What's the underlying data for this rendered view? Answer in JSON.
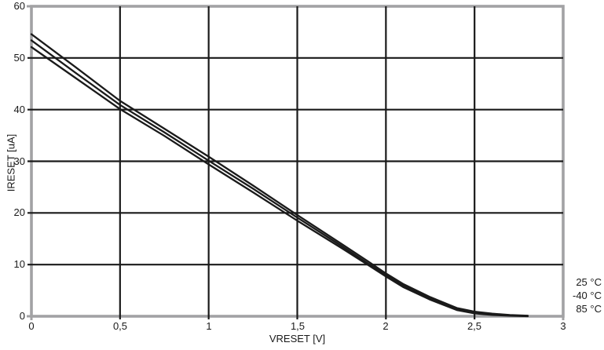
{
  "chart_data": {
    "type": "line",
    "xlabel": "VRESET [V]",
    "ylabel": "IRESET [uA]",
    "xlim": [
      0,
      3
    ],
    "ylim": [
      0,
      60
    ],
    "x_ticks": [
      0,
      0.5,
      1,
      1.5,
      2,
      2.5,
      3
    ],
    "x_tick_labels": [
      "0",
      "0,5",
      "1",
      "1,5",
      "2",
      "2,5",
      "3"
    ],
    "y_ticks": [
      0,
      10,
      20,
      30,
      40,
      50,
      60
    ],
    "y_tick_labels": [
      "0",
      "10",
      "20",
      "30",
      "40",
      "50",
      "60"
    ],
    "grid": true,
    "legend_position": "outside-right-bottom",
    "line_color": "#1a1a1a",
    "frame_color": "#a2a2a4",
    "text_color": "#1a1a1a",
    "background_color": "#ffffff",
    "x": [
      0,
      0.25,
      0.5,
      0.75,
      1.0,
      1.25,
      1.5,
      1.75,
      1.9,
      2.0,
      2.1,
      2.25,
      2.4,
      2.5,
      2.6,
      2.7,
      2.8
    ],
    "series": [
      {
        "name": "25 °C",
        "values": [
          53.4,
          47.1,
          40.9,
          35.6,
          30.1,
          24.7,
          19.1,
          13.6,
          10.2,
          8.0,
          5.9,
          3.4,
          1.4,
          0.7,
          0.35,
          0.15,
          0.05
        ]
      },
      {
        "name": "-40 °C",
        "values": [
          54.6,
          48.2,
          41.7,
          36.3,
          30.9,
          25.3,
          19.6,
          14.0,
          10.6,
          8.3,
          6.2,
          3.7,
          1.6,
          0.9,
          0.5,
          0.25,
          0.1
        ]
      },
      {
        "name": "85 °C",
        "values": [
          52.1,
          46.1,
          40.1,
          34.9,
          29.4,
          24.0,
          18.5,
          13.2,
          9.9,
          7.7,
          5.6,
          3.2,
          1.2,
          0.55,
          0.25,
          0.1,
          0.0
        ]
      }
    ]
  }
}
